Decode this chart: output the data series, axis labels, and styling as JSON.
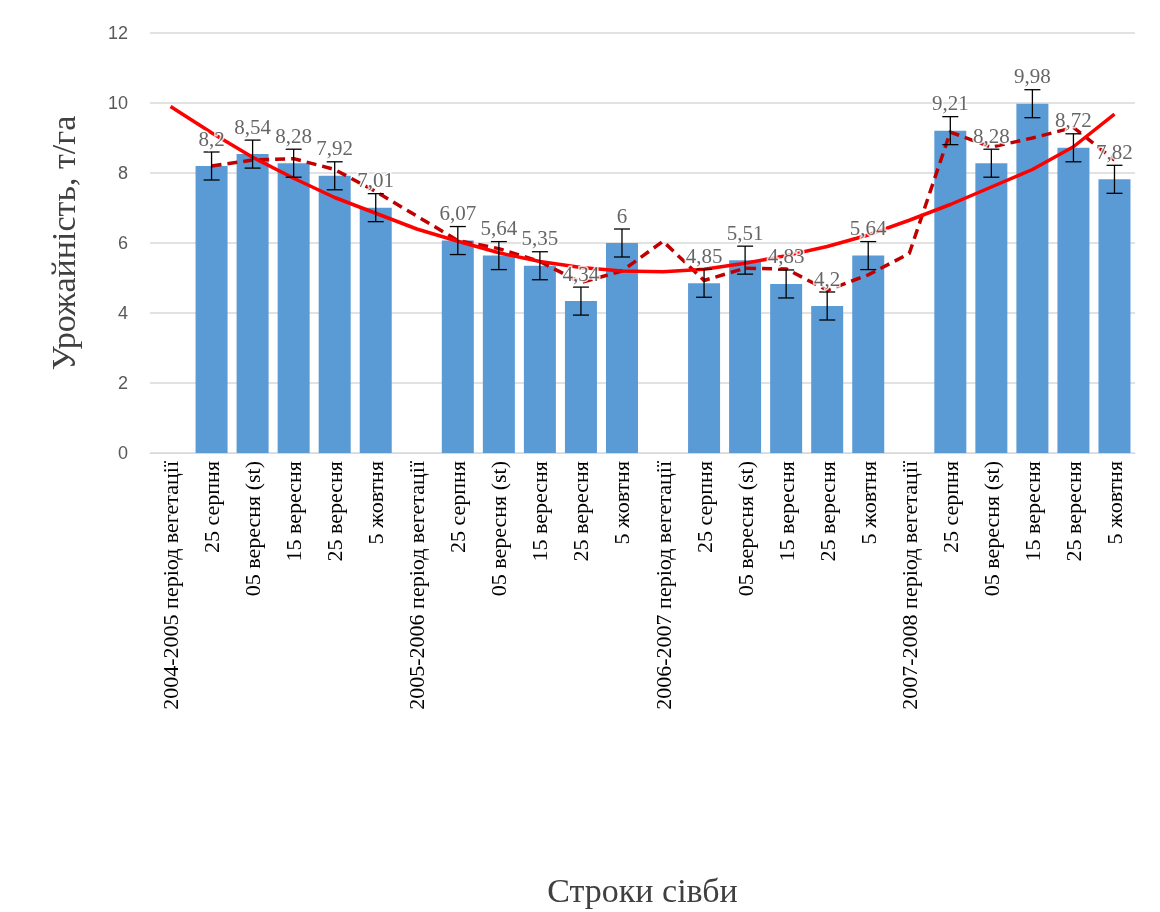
{
  "chart_data": {
    "type": "bar",
    "xlabel": "Строки сівби",
    "ylabel": "Урожайність, т/га",
    "categories": [
      "2004-2005 період вегетації",
      "25 серпня",
      "05 вересня (st)",
      "15 вересня",
      "25 вересня",
      "5 жовтня",
      "2005-2006 період вегетації",
      "25 серпня",
      "05 вересня (st)",
      "15 вересня",
      "25 вересня",
      "5 жовтня",
      "2006-2007 період вегетації",
      "25 серпня",
      "05 вересня (st)",
      "15 вересня",
      "25 вересня",
      "5 жовтня",
      "2007-2008 період вегетації",
      "25 серпня",
      "05 вересня (st)",
      "15 вересня",
      "25 вересня",
      "5 жовтня"
    ],
    "series": [
      {
        "color": "#5b9bd5",
        "values": [
          null,
          8.2,
          8.54,
          8.28,
          7.92,
          7.01,
          null,
          6.07,
          5.64,
          5.35,
          4.34,
          6,
          null,
          4.85,
          5.51,
          4.83,
          4.2,
          5.64,
          null,
          9.21,
          8.28,
          9.98,
          8.72,
          7.82
        ],
        "value_labels": [
          null,
          "8,2",
          "8,54",
          "8,28",
          "7,92",
          "7,01",
          null,
          "6,07",
          "5,64",
          "5,35",
          "4,34",
          "6",
          null,
          "4,85",
          "5,51",
          "4,83",
          "4,2",
          "5,64",
          null,
          "9,21",
          "8,28",
          "9,98",
          "8,72",
          "7,82"
        ],
        "errors": [
          null,
          0.4,
          0.4,
          0.4,
          0.4,
          0.4,
          null,
          0.4,
          0.4,
          0.4,
          0.4,
          0.4,
          null,
          0.4,
          0.4,
          0.4,
          0.4,
          0.4,
          null,
          0.4,
          0.4,
          0.4,
          0.4,
          0.4
        ]
      },
      {
        "type": "line",
        "color": "#c00000",
        "line_style": "dashed",
        "values": [
          null,
          8.2,
          8.37,
          8.41,
          8.1,
          7.47,
          null,
          6.07,
          5.84,
          5.47,
          4.87,
          5.2,
          6.05,
          4.93,
          5.28,
          5.26,
          4.65,
          5.09,
          5.7,
          9.17,
          8.74,
          9.0,
          9.3,
          8.37
        ]
      },
      {
        "type": "line",
        "color": "#ff0000",
        "line_style": "solid",
        "values": [
          9.9,
          9.15,
          8.45,
          7.85,
          7.3,
          6.85,
          6.4,
          6.05,
          5.72,
          5.47,
          5.3,
          5.2,
          5.18,
          5.25,
          5.42,
          5.64,
          5.9,
          6.23,
          6.65,
          7.1,
          7.6,
          8.1,
          8.75,
          9.68
        ]
      }
    ],
    "ylim": [
      0,
      12
    ],
    "yticks": [
      0,
      2,
      4,
      6,
      8,
      10,
      12
    ],
    "grid": "y",
    "marker": "none"
  }
}
